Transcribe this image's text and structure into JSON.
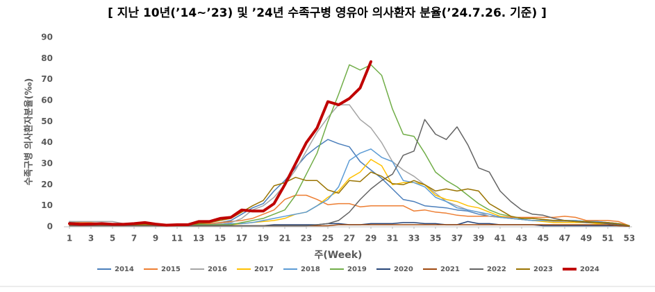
{
  "chart_data": {
    "type": "line",
    "title": "[ 지난 10년(’14~’23) 및 ’24년 수족구병 영유아 의사환자 분율(’24.7.26. 기준) ]",
    "x_label": "주(Week)",
    "y_label": "수족구병 의사환자분율(‰)",
    "x": [
      1,
      2,
      3,
      4,
      5,
      6,
      7,
      8,
      9,
      10,
      11,
      12,
      13,
      14,
      15,
      16,
      17,
      18,
      19,
      20,
      21,
      22,
      23,
      24,
      25,
      26,
      27,
      28,
      29,
      30,
      31,
      32,
      33,
      34,
      35,
      36,
      37,
      38,
      39,
      40,
      41,
      42,
      43,
      44,
      45,
      46,
      47,
      48,
      49,
      50,
      51,
      52,
      53
    ],
    "xlim": [
      1,
      53
    ],
    "xticks": [
      1,
      3,
      5,
      7,
      9,
      11,
      13,
      15,
      17,
      19,
      21,
      23,
      25,
      27,
      29,
      31,
      33,
      35,
      37,
      39,
      41,
      43,
      45,
      47,
      49,
      51,
      53
    ],
    "ylim": [
      0,
      90
    ],
    "yticks": [
      0,
      10,
      20,
      30,
      40,
      50,
      60,
      70,
      80,
      90
    ],
    "grid": false,
    "legend": "bottom",
    "series": [
      {
        "name": "2014",
        "color": "#4a7ebb",
        "values": [
          2.5,
          2,
          1.5,
          1,
          1,
          1,
          1,
          1,
          1,
          1,
          1,
          1,
          1.5,
          1.5,
          2,
          3,
          6,
          9,
          11,
          17,
          22,
          28,
          34,
          38,
          41.5,
          39.5,
          38,
          31,
          27,
          23,
          18,
          13,
          12,
          10,
          9.5,
          9,
          8,
          7.5,
          6,
          5,
          4.5,
          4,
          3.5,
          3,
          3,
          3,
          3,
          3,
          2.5,
          2.5,
          2,
          1.5,
          0.5
        ]
      },
      {
        "name": "2015",
        "color": "#ed7d31",
        "values": [
          2,
          2,
          2,
          1.5,
          1.5,
          1,
          1,
          1,
          1,
          1,
          1,
          1,
          1,
          1.5,
          2,
          2.5,
          3,
          4,
          6,
          8,
          13,
          15,
          15,
          13,
          10.5,
          11,
          11,
          9.5,
          10,
          10,
          10,
          10,
          7.5,
          8,
          7,
          6.5,
          5.5,
          5,
          5,
          5,
          5,
          4.5,
          4.5,
          4.5,
          4.5,
          4.5,
          5,
          4.5,
          3,
          3,
          3,
          2.5,
          0.5
        ]
      },
      {
        "name": "2016",
        "color": "#a5a5a5",
        "values": [
          2.5,
          2.5,
          2.5,
          2.5,
          2.5,
          1.5,
          1.5,
          1.5,
          1,
          1,
          1,
          1,
          1,
          1,
          1.5,
          2,
          4,
          8,
          10,
          14,
          20,
          27,
          36,
          45,
          52,
          58,
          58,
          51,
          47,
          40,
          31,
          27,
          24,
          20,
          16,
          12,
          10,
          8,
          7,
          5,
          4.5,
          4,
          3.5,
          3,
          3,
          2.5,
          2.5,
          2.5,
          2,
          2,
          2,
          1.5,
          0.5
        ]
      },
      {
        "name": "2017",
        "color": "#ffc000",
        "values": [
          1,
          1,
          1,
          1,
          1,
          1,
          1,
          1,
          0.5,
          0.5,
          0.5,
          0.5,
          0.5,
          0.5,
          1,
          1,
          1.5,
          2,
          2.5,
          3,
          4,
          6,
          7,
          10,
          14,
          17,
          23,
          26,
          32,
          29,
          20,
          21,
          21,
          20,
          15,
          13,
          12,
          10,
          9,
          7,
          5,
          4,
          3.5,
          3,
          2.5,
          2,
          2,
          2,
          2,
          1.5,
          1.5,
          1,
          0.5
        ]
      },
      {
        "name": "2018",
        "color": "#5b9bd5",
        "values": [
          1.5,
          1.5,
          1.5,
          1,
          1,
          1,
          1,
          1,
          1,
          1,
          1,
          1,
          1,
          1,
          1,
          1.5,
          1.5,
          2,
          3,
          4,
          5,
          6,
          7,
          10,
          13,
          19,
          31.5,
          35,
          37,
          33,
          31,
          22,
          21,
          19,
          14,
          12,
          9,
          8,
          7,
          6,
          4.5,
          4,
          3.5,
          3,
          3,
          3,
          3,
          3,
          2.5,
          2.5,
          2,
          1.5,
          0.5
        ]
      },
      {
        "name": "2019",
        "color": "#70ad47",
        "values": [
          1,
          1,
          1,
          1,
          1,
          1,
          1,
          1,
          1,
          1,
          1,
          1,
          1,
          1,
          1,
          1,
          2,
          3,
          4,
          6,
          8,
          15,
          25,
          35,
          50,
          63,
          77,
          74.5,
          77,
          72,
          56,
          44,
          43,
          35,
          26,
          22,
          19,
          15,
          11,
          8,
          6,
          5,
          4,
          4,
          3.5,
          3,
          3,
          2.5,
          2.5,
          2,
          1.5,
          1,
          0.5
        ]
      },
      {
        "name": "2020",
        "color": "#264478",
        "values": [
          2,
          1.5,
          1.5,
          1,
          1,
          1,
          1,
          1,
          0.5,
          0.5,
          0.5,
          0.5,
          0.5,
          0.5,
          0.5,
          0.5,
          0.5,
          0.5,
          0.5,
          1,
          1,
          1,
          1,
          1,
          1.5,
          1.5,
          1,
          1,
          1.5,
          1.5,
          1.5,
          2,
          2,
          1.5,
          1.5,
          1,
          1,
          2.5,
          1.5,
          1.5,
          1,
          1,
          1,
          1,
          0.5,
          0.5,
          0.5,
          0.5,
          0.5,
          0.5,
          0.5,
          0.5,
          0.3
        ]
      },
      {
        "name": "2021",
        "color": "#9e480e",
        "values": [
          0.5,
          0.5,
          0.5,
          0.5,
          0.5,
          0.5,
          0.5,
          0.5,
          0.5,
          0.5,
          0.5,
          0.5,
          0.5,
          0.5,
          0.5,
          0.5,
          0.5,
          0.5,
          0.5,
          0.5,
          0.5,
          0.5,
          0.5,
          0.5,
          0.5,
          1,
          1,
          1,
          1,
          1,
          1,
          1,
          1,
          1,
          1,
          1,
          1,
          1,
          1,
          1,
          1,
          1,
          1,
          1,
          1,
          1,
          1,
          1,
          1,
          1,
          1,
          0.5,
          0.3
        ]
      },
      {
        "name": "2022",
        "color": "#636363",
        "values": [
          0.5,
          0.5,
          0.5,
          0.5,
          0.5,
          0.5,
          0.5,
          0.5,
          0.5,
          0.5,
          0.5,
          0.5,
          0.5,
          0.5,
          0.5,
          0.5,
          0.5,
          0.5,
          0.5,
          0.5,
          0.5,
          0.5,
          0.5,
          1,
          1.5,
          3,
          7,
          13,
          18,
          22,
          25,
          34,
          36,
          51,
          44,
          41.5,
          47.5,
          39,
          28,
          26,
          17,
          12,
          8,
          6,
          5.5,
          4,
          3,
          2.5,
          2,
          2,
          1.5,
          1,
          0.5
        ]
      },
      {
        "name": "2023",
        "color": "#997300",
        "values": [
          1,
          1,
          1,
          1,
          1,
          1,
          1,
          1,
          1,
          1,
          1,
          1,
          1.5,
          2,
          3,
          4,
          7,
          10,
          12.5,
          19.5,
          21,
          23.5,
          22,
          22,
          17.5,
          16,
          22,
          21.5,
          26,
          24,
          20.5,
          20,
          22,
          20,
          17,
          18,
          17,
          18,
          17,
          11,
          8,
          5,
          4,
          4,
          3.5,
          3,
          3,
          2.5,
          2.5,
          2,
          2,
          1.5,
          0.5
        ]
      },
      {
        "name": "2024",
        "color": "#c00000",
        "width": 4,
        "values": [
          1.5,
          1.2,
          1.3,
          1.5,
          1.2,
          1.2,
          1.5,
          2,
          1.3,
          0.8,
          1,
          1,
          2.5,
          2.5,
          4,
          4.5,
          8,
          7.5,
          7.5,
          11,
          20,
          30,
          40,
          47,
          59.5,
          58,
          61,
          66,
          78.5,
          null,
          null,
          null,
          null,
          null,
          null,
          null,
          null,
          null,
          null,
          null,
          null,
          null,
          null,
          null,
          null,
          null,
          null,
          null,
          null,
          null,
          null,
          null,
          null
        ]
      }
    ]
  }
}
